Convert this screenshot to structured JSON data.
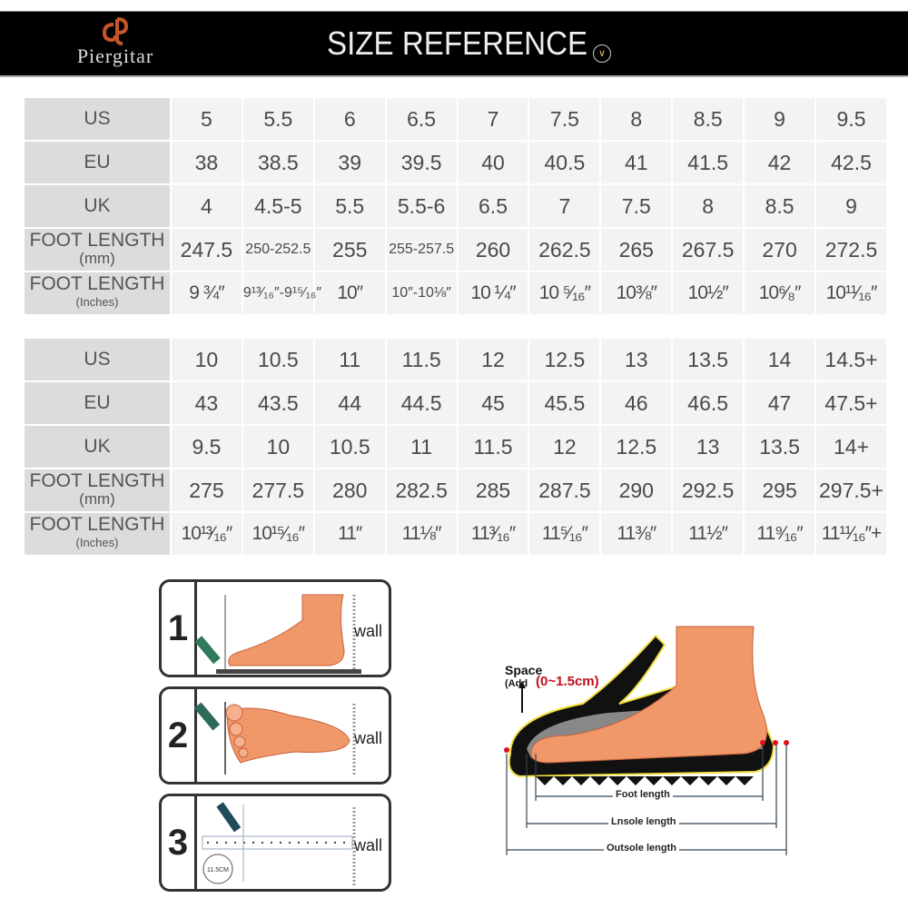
{
  "header": {
    "brand": "Piergitar",
    "title": "SIZE REFERENCE",
    "title_icon": "chevron-down-circle-icon",
    "accent_color": "#c8552a"
  },
  "tables": [
    {
      "rows": [
        {
          "label": "US",
          "sub": "",
          "values": [
            "5",
            "5.5",
            "6",
            "6.5",
            "7",
            "7.5",
            "8",
            "8.5",
            "9",
            "9.5"
          ]
        },
        {
          "label": "EU",
          "sub": "",
          "values": [
            "38",
            "38.5",
            "39",
            "39.5",
            "40",
            "40.5",
            "41",
            "41.5",
            "42",
            "42.5"
          ]
        },
        {
          "label": "UK",
          "sub": "",
          "values": [
            "4",
            "4.5-5",
            "5.5",
            "5.5-6",
            "6.5",
            "7",
            "7.5",
            "8",
            "8.5",
            "9"
          ]
        },
        {
          "label": "FOOT LENGTH",
          "sub": "(mm)",
          "values": [
            "247.5",
            "250-252.5",
            "255",
            "255-257.5",
            "260",
            "262.5",
            "265",
            "267.5",
            "270",
            "272.5"
          ]
        },
        {
          "label": "FOOT LENGTH",
          "sub": "(Inches)",
          "values": [
            "9 ¾″",
            "9¹³⁄₁₆″-9¹⁵⁄₁₆″",
            "10″",
            "10″-10⅛″",
            "10 ¼″",
            "10 ⁵⁄₁₆″",
            "10⅜″",
            "10½″",
            "10⁶⁄₈″",
            "10¹¹⁄₁₆″"
          ]
        }
      ]
    },
    {
      "rows": [
        {
          "label": "US",
          "sub": "",
          "values": [
            "10",
            "10.5",
            "11",
            "11.5",
            "12",
            "12.5",
            "13",
            "13.5",
            "14",
            "14.5+"
          ]
        },
        {
          "label": "EU",
          "sub": "",
          "values": [
            "43",
            "43.5",
            "44",
            "44.5",
            "45",
            "45.5",
            "46",
            "46.5",
            "47",
            "47.5+"
          ]
        },
        {
          "label": "UK",
          "sub": "",
          "values": [
            "9.5",
            "10",
            "10.5",
            "11",
            "11.5",
            "12",
            "12.5",
            "13",
            "13.5",
            "14+"
          ]
        },
        {
          "label": "FOOT LENGTH",
          "sub": "(mm)",
          "values": [
            "275",
            "277.5",
            "280",
            "282.5",
            "285",
            "287.5",
            "290",
            "292.5",
            "295",
            "297.5+"
          ]
        },
        {
          "label": "FOOT LENGTH",
          "sub": "(Inches)",
          "values": [
            "10¹³⁄₁₆″",
            "10¹⁵⁄₁₆″",
            "11″",
            "11⅛″",
            "11³⁄₁₆″",
            "11⁵⁄₁₆″",
            "11⅜″",
            "11½″",
            "11⁹⁄₁₆″",
            "11¹¹⁄₁₆″+"
          ]
        }
      ]
    }
  ],
  "steps": [
    {
      "number": "1",
      "wall_label": "wall"
    },
    {
      "number": "2",
      "wall_label": "wall"
    },
    {
      "number": "3",
      "wall_label": "wall",
      "ruler_label": "11.5CM"
    }
  ],
  "shoe_diagram": {
    "space_label": "Space",
    "add_label": "(Add",
    "space_range": "(0~1.5cm)",
    "foot_length": "Foot length",
    "insole_length": "Lnsole length",
    "outsole_length": "Outsole length",
    "range_color": "#c0101a",
    "foot_color": "#f0986a"
  }
}
